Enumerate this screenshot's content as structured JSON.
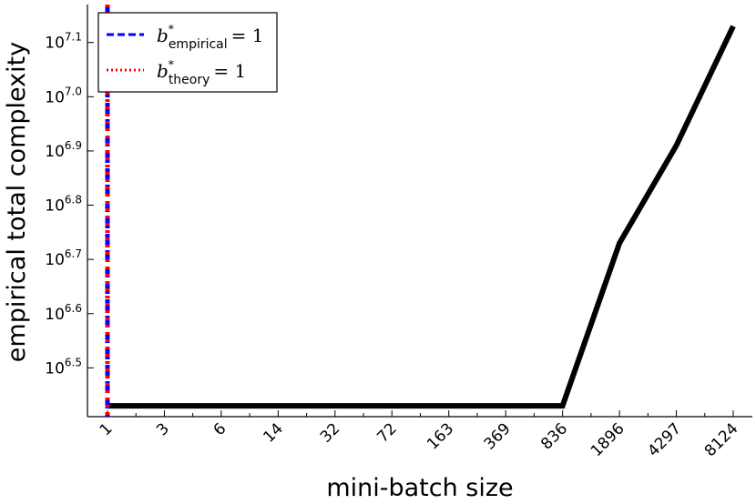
{
  "chart_data": {
    "type": "line",
    "title": "",
    "xlabel": "mini-batch size",
    "ylabel": "empirical total complexity",
    "x_scale": "log",
    "y_scale": "log",
    "x": [
      1,
      3,
      6,
      14,
      32,
      72,
      163,
      369,
      836,
      1896,
      4297,
      8124
    ],
    "xtick_labels": [
      "1",
      "3",
      "6",
      "14",
      "32",
      "72",
      "163",
      "369",
      "836",
      "1896",
      "4297",
      "8124"
    ],
    "series": [
      {
        "name": "",
        "color": "#000000",
        "log10_values": [
          6.43,
          6.43,
          6.43,
          6.43,
          6.43,
          6.43,
          6.43,
          6.43,
          6.43,
          6.73,
          6.91,
          7.13
        ]
      }
    ],
    "ylim_log10": [
      6.41,
      7.17
    ],
    "ytick_base": "10",
    "ytick_exponents": [
      "6.5",
      "6.6",
      "6.7",
      "6.8",
      "6.9",
      "7.0",
      "7.1"
    ],
    "vlines": [
      {
        "x": 1,
        "label_b": "b",
        "label_star": "*",
        "label_sub": "empirical",
        "label_eq": "= 1",
        "color": "#0000ff",
        "style": "dashed"
      },
      {
        "x": 1,
        "label_b": "b",
        "label_star": "*",
        "label_sub": "theory",
        "label_eq": "= 1",
        "color": "#ff0000",
        "style": "dotted"
      }
    ],
    "legend_position": "upper-left",
    "grid": false
  }
}
